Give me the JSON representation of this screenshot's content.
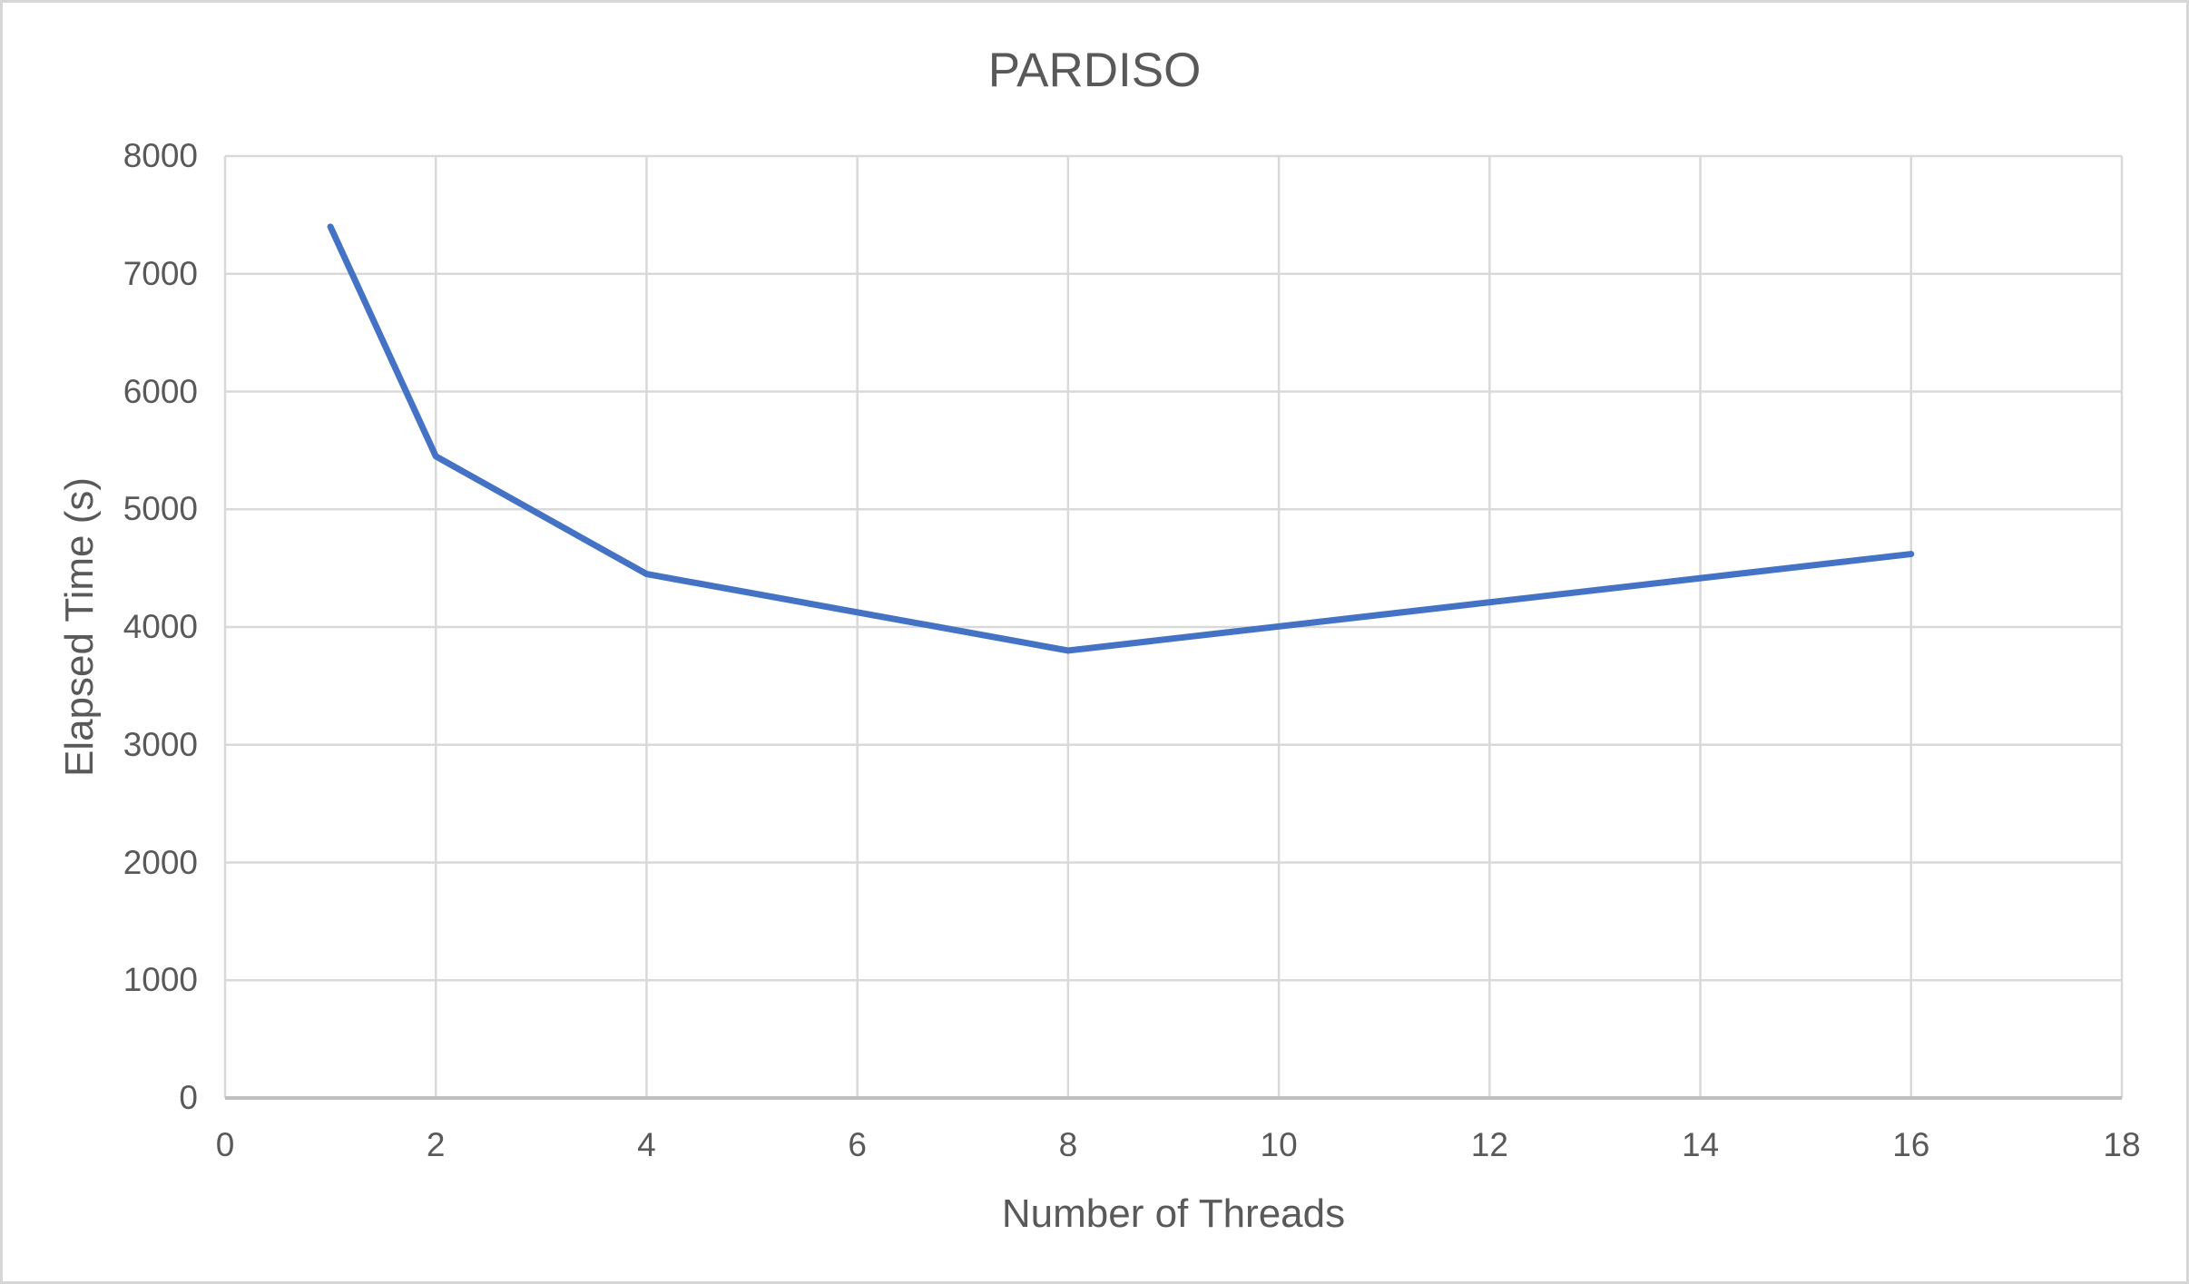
{
  "colors": {
    "line": "#4472C4",
    "gridline": "#D9D9D9",
    "axis_line": "#BFBFBF",
    "text": "#595959",
    "background": "#FFFFFF",
    "frame_border": "#D6D6D6"
  },
  "chart_data": {
    "type": "line",
    "title": "PARDISO",
    "xlabel": "Number of Threads",
    "ylabel": "Elapsed Time (s)",
    "x": [
      1,
      2,
      4,
      8,
      16
    ],
    "series": [
      {
        "name": "Elapsed Time",
        "values": [
          7400,
          5450,
          4450,
          3800,
          4620
        ]
      }
    ],
    "xlim": [
      0,
      18
    ],
    "ylim": [
      0,
      8000
    ],
    "x_ticks": [
      0,
      2,
      4,
      6,
      8,
      10,
      12,
      14,
      16,
      18
    ],
    "y_ticks": [
      0,
      1000,
      2000,
      3000,
      4000,
      5000,
      6000,
      7000,
      8000
    ],
    "grid": true,
    "legend": false
  }
}
